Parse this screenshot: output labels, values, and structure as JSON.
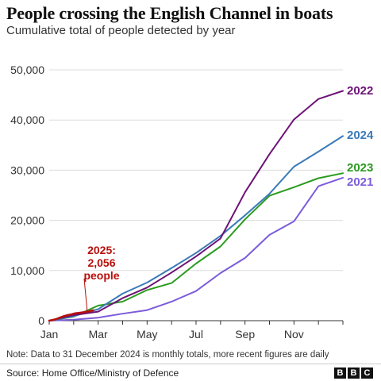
{
  "header": {
    "title": "People crossing the English Channel in boats",
    "subtitle": "Cumulative total of people detected by year"
  },
  "footer": {
    "note": "Note: Data to 31 December 2024 is monthly totals, more recent figures are daily",
    "source": "Source: Home Office/Ministry of Defence",
    "logo_letters": [
      "B",
      "B",
      "C"
    ]
  },
  "annotation": {
    "lines": [
      "2025:",
      "2,056",
      "people"
    ]
  },
  "chart_data": {
    "type": "line",
    "title": "People crossing the English Channel in boats",
    "subtitle": "Cumulative total of people detected by year",
    "x_ticks": [
      "Jan",
      "Mar",
      "May",
      "Jul",
      "Sep",
      "Nov"
    ],
    "x_months": [
      0,
      2,
      4,
      6,
      8,
      10
    ],
    "y_ticks": [
      "0",
      "10,000",
      "20,000",
      "30,000",
      "40,000",
      "50,000"
    ],
    "ylim": [
      0,
      50000
    ],
    "xlim": [
      0,
      12
    ],
    "grid": "horizontal",
    "legend": "labels at line ends",
    "series": [
      {
        "name": "2021",
        "color": "#7b5cdb",
        "x": [
          0,
          1,
          2,
          3,
          4,
          5,
          6,
          7,
          8,
          9,
          10,
          11,
          12
        ],
        "values": [
          0,
          200,
          600,
          1400,
          2100,
          3800,
          5900,
          9500,
          12500,
          17100,
          19800,
          26800,
          28500
        ]
      },
      {
        "name": "2022",
        "color": "#6d1377",
        "x": [
          0,
          1,
          2,
          3,
          4,
          5,
          6,
          7,
          8,
          9,
          10,
          11,
          12
        ],
        "values": [
          0,
          1100,
          1800,
          4500,
          6600,
          9600,
          12800,
          16400,
          25600,
          33200,
          40100,
          44200,
          45800
        ]
      },
      {
        "name": "2023",
        "color": "#2a9b1e",
        "x": [
          0,
          1,
          2,
          3,
          4,
          5,
          6,
          7,
          8,
          9,
          10,
          11,
          12
        ],
        "values": [
          0,
          800,
          3000,
          3800,
          6100,
          7500,
          11400,
          14800,
          20200,
          24900,
          26600,
          28400,
          29400
        ]
      },
      {
        "name": "2024",
        "color": "#3a7ab8",
        "x": [
          0,
          1,
          2,
          3,
          4,
          5,
          6,
          7,
          8,
          9,
          10,
          11,
          12
        ],
        "values": [
          0,
          900,
          2300,
          5400,
          7600,
          10500,
          13500,
          16900,
          21000,
          25300,
          30700,
          33700,
          36800
        ]
      },
      {
        "name": "2025",
        "color": "#b80f0a",
        "x": [
          0,
          0.15,
          0.3,
          0.45,
          0.6,
          0.75,
          0.9,
          1.05,
          1.2,
          1.35,
          1.5,
          1.65,
          1.8
        ],
        "values": [
          0,
          150,
          350,
          650,
          900,
          1100,
          1250,
          1450,
          1550,
          1650,
          1750,
          1900,
          2056
        ]
      }
    ]
  }
}
